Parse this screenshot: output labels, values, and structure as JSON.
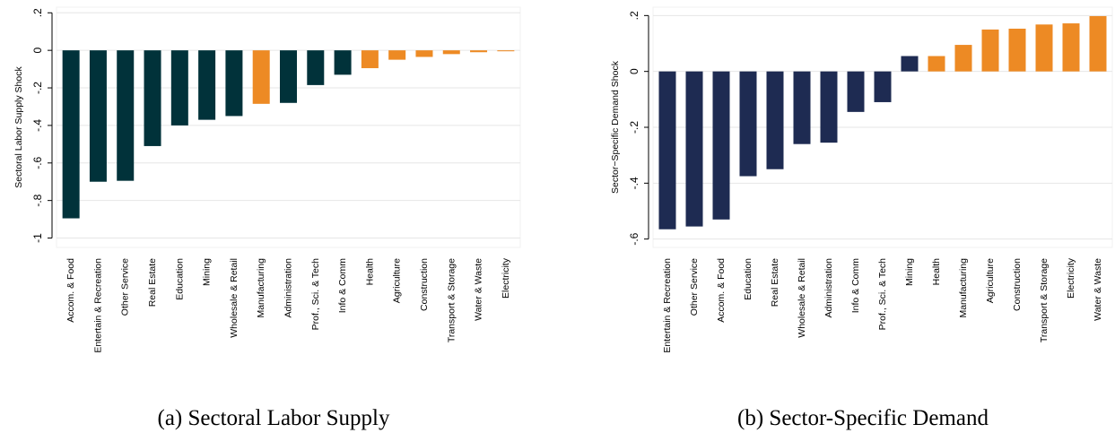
{
  "colors": {
    "dark_teal": "#01323a",
    "navy": "#1e2b52",
    "orange": "#ed8a24",
    "grid": "#e6e6e6",
    "frame": "#f2f2f2"
  },
  "chart_data": [
    {
      "type": "bar",
      "caption": "(a) Sectoral Labor Supply",
      "ylabel": "Sectoral Labor Supply Shock",
      "xlabel": "",
      "ylim": [
        -1.05,
        0.23
      ],
      "yticks": [
        0.2,
        0,
        -0.2,
        -0.4,
        -0.6,
        -0.8,
        -1
      ],
      "ytick_labels": [
        ".2",
        "0",
        "-.2",
        "-.4",
        "-.6",
        "-.8",
        "-1"
      ],
      "grid": true,
      "categories": [
        "Accom. & Food",
        "Entertain & Recreation",
        "Other Service",
        "Real Estate",
        "Education",
        "Mining",
        "Wholesale & Retail",
        "Manufacturing",
        "Administration",
        "Prof., Sci. & Tech",
        "Info & Comm",
        "Health",
        "Agriculture",
        "Construction",
        "Transport & Storage",
        "Water & Waste",
        "Electricity"
      ],
      "values": [
        -0.895,
        -0.7,
        -0.695,
        -0.51,
        -0.4,
        -0.37,
        -0.35,
        -0.285,
        -0.28,
        -0.185,
        -0.13,
        -0.095,
        -0.05,
        -0.035,
        -0.02,
        -0.01,
        -0.005
      ],
      "bar_colors": [
        "dark_teal",
        "dark_teal",
        "dark_teal",
        "dark_teal",
        "dark_teal",
        "dark_teal",
        "dark_teal",
        "orange",
        "dark_teal",
        "dark_teal",
        "dark_teal",
        "orange",
        "orange",
        "orange",
        "orange",
        "orange",
        "orange"
      ]
    },
    {
      "type": "bar",
      "caption": "(b) Sector-Specific Demand",
      "ylabel": "Sector−Specific Demand Shock",
      "xlabel": "",
      "ylim": [
        -0.63,
        0.23
      ],
      "yticks": [
        0.2,
        0,
        -0.2,
        -0.4,
        -0.6
      ],
      "ytick_labels": [
        ".2",
        "0",
        "-.2",
        "-.4",
        "-.6"
      ],
      "grid": true,
      "categories": [
        "Entertain & Recreation",
        "Other Service",
        "Accom. & Food",
        "Education",
        "Real Estate",
        "Wholesale & Retail",
        "Administration",
        "Info & Comm",
        "Prof., Sci. & Tech",
        "Mining",
        "Health",
        "Manufacturing",
        "Agriculture",
        "Construction",
        "Transport & Storage",
        "Electricity",
        "Water & Waste"
      ],
      "values": [
        -0.565,
        -0.555,
        -0.53,
        -0.375,
        -0.35,
        -0.26,
        -0.255,
        -0.145,
        -0.11,
        0.055,
        0.055,
        0.095,
        0.15,
        0.153,
        0.168,
        0.172,
        0.198
      ],
      "bar_colors": [
        "navy",
        "navy",
        "navy",
        "navy",
        "navy",
        "navy",
        "navy",
        "navy",
        "navy",
        "navy",
        "orange",
        "orange",
        "orange",
        "orange",
        "orange",
        "orange",
        "orange"
      ]
    }
  ]
}
